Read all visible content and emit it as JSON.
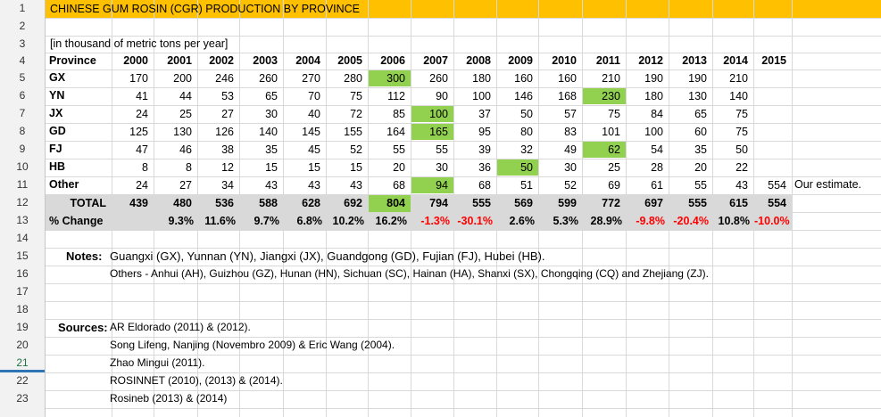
{
  "title": "CHINESE GUM ROSIN (CGR) PRODUCTION BY PROVINCE",
  "units": "[in thousand of metric tons per year]",
  "row_numbers": [
    "1",
    "2",
    "3",
    "4",
    "5",
    "6",
    "7",
    "8",
    "9",
    "10",
    "11",
    "12",
    "13",
    "14",
    "15",
    "16",
    "17",
    "18",
    "19",
    "20",
    "21",
    "22",
    "23"
  ],
  "table": {
    "header_label": "Province",
    "years": [
      "2000",
      "2001",
      "2002",
      "2003",
      "2004",
      "2005",
      "2006",
      "2007",
      "2008",
      "2009",
      "2010",
      "2011",
      "2012",
      "2013",
      "2014",
      "2015"
    ],
    "rows": [
      {
        "province": "GX",
        "values": [
          "170",
          "200",
          "246",
          "260",
          "270",
          "280",
          "300",
          "260",
          "180",
          "160",
          "160",
          "210",
          "190",
          "190",
          "210",
          ""
        ],
        "highlight": 6
      },
      {
        "province": "YN",
        "values": [
          "41",
          "44",
          "53",
          "65",
          "70",
          "75",
          "112",
          "90",
          "100",
          "146",
          "168",
          "230",
          "180",
          "130",
          "140",
          ""
        ],
        "highlight": 11
      },
      {
        "province": "JX",
        "values": [
          "24",
          "25",
          "27",
          "30",
          "40",
          "72",
          "85",
          "100",
          "37",
          "50",
          "57",
          "75",
          "84",
          "65",
          "75",
          ""
        ],
        "highlight": 7
      },
      {
        "province": "GD",
        "values": [
          "125",
          "130",
          "126",
          "140",
          "145",
          "155",
          "164",
          "165",
          "95",
          "80",
          "83",
          "101",
          "100",
          "60",
          "75",
          ""
        ],
        "highlight": 7
      },
      {
        "province": "FJ",
        "values": [
          "47",
          "46",
          "38",
          "35",
          "45",
          "52",
          "55",
          "55",
          "39",
          "32",
          "49",
          "62",
          "54",
          "35",
          "50",
          ""
        ],
        "highlight": 11
      },
      {
        "province": "HB",
        "values": [
          "8",
          "8",
          "12",
          "15",
          "15",
          "15",
          "20",
          "30",
          "36",
          "50",
          "30",
          "25",
          "28",
          "20",
          "22",
          ""
        ],
        "highlight": 9
      },
      {
        "province": "Other",
        "values": [
          "24",
          "27",
          "34",
          "43",
          "43",
          "43",
          "68",
          "94",
          "68",
          "51",
          "52",
          "69",
          "61",
          "55",
          "43",
          "554"
        ],
        "highlight": 7
      }
    ],
    "total": {
      "label": "TOTAL",
      "values": [
        "439",
        "480",
        "536",
        "588",
        "628",
        "692",
        "804",
        "794",
        "555",
        "569",
        "599",
        "772",
        "697",
        "555",
        "615",
        "554"
      ],
      "highlight": 6
    },
    "pct": {
      "label": "% Change",
      "values": [
        "",
        "9.3%",
        "11.6%",
        "9.7%",
        "6.8%",
        "10.2%",
        "16.2%",
        "-1.3%",
        "-30.1%",
        "2.6%",
        "5.3%",
        "28.9%",
        "-9.8%",
        "-20.4%",
        "10.8%",
        "-10.0%"
      ]
    },
    "estimate_note": "Our estimate."
  },
  "notes": {
    "label": "Notes:",
    "line1": "Guangxi (GX), Yunnan (YN), Jiangxi (JX), Guandgong (GD), Fujian (FJ), Hubei (HB).",
    "line2": "Others -  Anhui (AH), Guizhou (GZ), Hunan (HN), Sichuan (SC), Hainan (HA),  Shanxi (SX), Chongqing (CQ) and Zhejiang (ZJ)."
  },
  "sources": {
    "label": "Sources:",
    "lines": [
      "AR Eldorado (2011) & (2012).",
      "Song Lifeng, Nanjing (Novembro 2009) & Eric Wang (2004).",
      "Zhao Mingui (2011).",
      "ROSINNET (2010), (2013) & (2014).",
      "Rosineb (2013) & (2014)"
    ]
  },
  "colors": {
    "title_bar": "#ffc000",
    "highlight": "#92d050",
    "total_row": "#d9d9d9",
    "negative": "#ff0000",
    "selected_row_marker": "#2e75b6"
  }
}
